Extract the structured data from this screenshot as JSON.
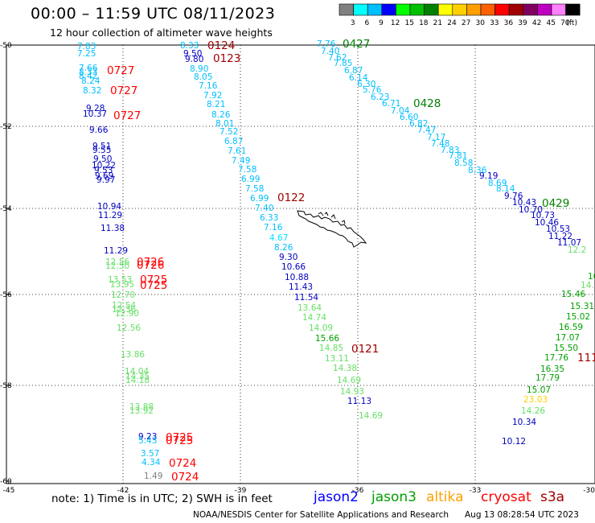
{
  "title": "00:00 – 11:59 UTC 08/11/2023",
  "subtitle": "12 hour collection of altimeter wave heights",
  "legend": {
    "unit": "(ft)",
    "bins": [
      {
        "label": "3",
        "color": "#808080"
      },
      {
        "label": "6",
        "color": "#00ffff"
      },
      {
        "label": "9",
        "color": "#00bfff"
      },
      {
        "label": "12",
        "color": "#0000ff"
      },
      {
        "label": "15",
        "color": "#00ff00"
      },
      {
        "label": "18",
        "color": "#00c000"
      },
      {
        "label": "21",
        "color": "#008000"
      },
      {
        "label": "24",
        "color": "#ffff00"
      },
      {
        "label": "27",
        "color": "#ffd000"
      },
      {
        "label": "30",
        "color": "#ffa000"
      },
      {
        "label": "33",
        "color": "#ff6000"
      },
      {
        "label": "36",
        "color": "#ff0000"
      },
      {
        "label": "39",
        "color": "#a00000"
      },
      {
        "label": "42",
        "color": "#800060"
      },
      {
        "label": "45",
        "color": "#c000c0"
      },
      {
        "label": "70",
        "color": "#ff80ff"
      },
      {
        "label": "",
        "color": "#000000"
      }
    ]
  },
  "axes": {
    "lat_ticks": [
      "-50",
      "-52",
      "-54",
      "-56",
      "-58",
      "-60"
    ],
    "lon_ticks": [
      "-45",
      "-42",
      "-39",
      "-36",
      "-33",
      "-30"
    ]
  },
  "tracks": [
    {
      "id": "t1",
      "points": [
        {
          "v": "7.83",
          "c": "#00bfff"
        },
        {
          "v": "7.25",
          "c": "#00bfff"
        },
        {
          "v": "7.66",
          "c": "#00bfff"
        },
        {
          "v": "8.33",
          "c": "#00bfff"
        },
        {
          "v": "8.42",
          "c": "#00bfff"
        },
        {
          "v": "8.24",
          "c": "#00bfff"
        },
        {
          "v": "8.32",
          "c": "#00bfff"
        },
        {
          "v": "9.28",
          "c": "#0000c0"
        },
        {
          "v": "10.37",
          "c": "#0000c0"
        },
        {
          "v": "9.66",
          "c": "#0000c0"
        },
        {
          "v": "9.51",
          "c": "#0000c0"
        },
        {
          "v": "9.55",
          "c": "#0000c0"
        },
        {
          "v": "9.50",
          "c": "#0000c0"
        },
        {
          "v": "10.22",
          "c": "#0000c0"
        },
        {
          "v": "9.53",
          "c": "#0000c0"
        },
        {
          "v": "9.69",
          "c": "#0000c0"
        },
        {
          "v": "9.97",
          "c": "#0000c0"
        },
        {
          "v": "10.94",
          "c": "#0000c0"
        },
        {
          "v": "11.29",
          "c": "#0000c0"
        },
        {
          "v": "11.38",
          "c": "#0000c0"
        },
        {
          "v": "11.29",
          "c": "#0000c0"
        },
        {
          "v": "12.56",
          "c": "#66e066"
        },
        {
          "v": "12.50",
          "c": "#66e066"
        },
        {
          "v": "13.53",
          "c": "#66e066"
        },
        {
          "v": "13.95",
          "c": "#66e066"
        },
        {
          "v": "12.70",
          "c": "#66e066"
        },
        {
          "v": "12.54",
          "c": "#66e066"
        },
        {
          "v": "12.36",
          "c": "#66e066"
        },
        {
          "v": "12.90",
          "c": "#66e066"
        },
        {
          "v": "12.56",
          "c": "#66e066"
        },
        {
          "v": "13.86",
          "c": "#66e066"
        },
        {
          "v": "14.04",
          "c": "#66e066"
        },
        {
          "v": "14.35",
          "c": "#66e066"
        },
        {
          "v": "14.18",
          "c": "#66e066"
        },
        {
          "v": "13.88",
          "c": "#66e066"
        },
        {
          "v": "13.92",
          "c": "#66e066"
        },
        {
          "v": "9.23",
          "c": "#0000c0"
        },
        {
          "v": "5.43",
          "c": "#00bfff"
        },
        {
          "v": "3.57",
          "c": "#00bfff"
        },
        {
          "v": "4.34",
          "c": "#00bfff"
        },
        {
          "v": "1.49",
          "c": "#808080"
        }
      ]
    },
    {
      "id": "t2",
      "points": [
        {
          "v": "8.33",
          "c": "#00bfff"
        },
        {
          "v": "9.50",
          "c": "#0000c0"
        },
        {
          "v": "9.80",
          "c": "#0000c0"
        },
        {
          "v": "8.90",
          "c": "#00bfff"
        },
        {
          "v": "8.05",
          "c": "#00bfff"
        },
        {
          "v": "7.16",
          "c": "#00bfff"
        },
        {
          "v": "7.92",
          "c": "#00bfff"
        },
        {
          "v": "8.21",
          "c": "#00bfff"
        },
        {
          "v": "8.26",
          "c": "#00bfff"
        },
        {
          "v": "8.01",
          "c": "#00bfff"
        },
        {
          "v": "7.52",
          "c": "#00bfff"
        },
        {
          "v": "6.87",
          "c": "#00bfff"
        },
        {
          "v": "7.61",
          "c": "#00bfff"
        },
        {
          "v": "7.49",
          "c": "#00bfff"
        },
        {
          "v": "7.58",
          "c": "#00bfff"
        },
        {
          "v": "6.99",
          "c": "#00bfff"
        },
        {
          "v": "7.58",
          "c": "#00bfff"
        },
        {
          "v": "6.99",
          "c": "#00bfff"
        },
        {
          "v": "7.40",
          "c": "#00bfff"
        },
        {
          "v": "6.33",
          "c": "#00bfff"
        },
        {
          "v": "7.16",
          "c": "#00bfff"
        },
        {
          "v": "4.67",
          "c": "#00dfff"
        },
        {
          "v": "8.26",
          "c": "#00bfff"
        },
        {
          "v": "9.30",
          "c": "#0000c0"
        },
        {
          "v": "10.66",
          "c": "#0000c0"
        },
        {
          "v": "10.88",
          "c": "#0000c0"
        },
        {
          "v": "11.43",
          "c": "#0000c0"
        },
        {
          "v": "11.54",
          "c": "#0000c0"
        },
        {
          "v": "13.64",
          "c": "#66e066"
        },
        {
          "v": "14.74",
          "c": "#66e066"
        },
        {
          "v": "14.09",
          "c": "#66e066"
        },
        {
          "v": "15.66",
          "c": "#00a000"
        },
        {
          "v": "14.85",
          "c": "#66e066"
        },
        {
          "v": "13.11",
          "c": "#66e066"
        },
        {
          "v": "14.38",
          "c": "#66e066"
        },
        {
          "v": "14.69",
          "c": "#66e066"
        },
        {
          "v": "14.93",
          "c": "#66e066"
        },
        {
          "v": "11.13",
          "c": "#0000c0"
        },
        {
          "v": "14.69",
          "c": "#66e066"
        }
      ]
    },
    {
      "id": "t3",
      "points": [
        {
          "v": "7.76",
          "c": "#00bfff"
        },
        {
          "v": "7.40",
          "c": "#00bfff"
        },
        {
          "v": "7.62",
          "c": "#00bfff"
        },
        {
          "v": "7.85",
          "c": "#00bfff"
        },
        {
          "v": "6.87",
          "c": "#00bfff"
        },
        {
          "v": "6.14",
          "c": "#00bfff"
        },
        {
          "v": "6.30",
          "c": "#00bfff"
        },
        {
          "v": "5.76",
          "c": "#00bfff"
        },
        {
          "v": "6.23",
          "c": "#00bfff"
        },
        {
          "v": "6.71",
          "c": "#00bfff"
        },
        {
          "v": "7.04",
          "c": "#00bfff"
        },
        {
          "v": "6.60",
          "c": "#00bfff"
        },
        {
          "v": "6.82",
          "c": "#00bfff"
        },
        {
          "v": "7.47",
          "c": "#00bfff"
        },
        {
          "v": "7.17",
          "c": "#00bfff"
        },
        {
          "v": "7.48",
          "c": "#00bfff"
        },
        {
          "v": "7.83",
          "c": "#00bfff"
        },
        {
          "v": "7.81",
          "c": "#00bfff"
        },
        {
          "v": "8.58",
          "c": "#00bfff"
        },
        {
          "v": "8.36",
          "c": "#00bfff"
        },
        {
          "v": "9.19",
          "c": "#0000c0"
        },
        {
          "v": "8.69",
          "c": "#00bfff"
        },
        {
          "v": "8.14",
          "c": "#00bfff"
        },
        {
          "v": "9.76",
          "c": "#0000c0"
        },
        {
          "v": "10.43",
          "c": "#0000c0"
        },
        {
          "v": "10.70",
          "c": "#0000c0"
        },
        {
          "v": "10.73",
          "c": "#0000c0"
        },
        {
          "v": "10.46",
          "c": "#0000c0"
        },
        {
          "v": "10.53",
          "c": "#0000c0"
        },
        {
          "v": "11.22",
          "c": "#0000c0"
        },
        {
          "v": "11.07",
          "c": "#0000c0"
        },
        {
          "v": "12.2",
          "c": "#66e066"
        }
      ]
    },
    {
      "id": "t4",
      "points": [
        {
          "v": "16",
          "c": "#00a000"
        },
        {
          "v": "14.",
          "c": "#66e066"
        },
        {
          "v": "15.46",
          "c": "#00a000"
        },
        {
          "v": "15.31",
          "c": "#00a000"
        },
        {
          "v": "15.02",
          "c": "#00a000"
        },
        {
          "v": "16.59",
          "c": "#00a000"
        },
        {
          "v": "17.07",
          "c": "#00a000"
        },
        {
          "v": "15.50",
          "c": "#00a000"
        },
        {
          "v": "17.76",
          "c": "#00a000"
        },
        {
          "v": "16.35",
          "c": "#00a000"
        },
        {
          "v": "17.79",
          "c": "#00a000"
        },
        {
          "v": "15.07",
          "c": "#00a000"
        },
        {
          "v": "23.03",
          "c": "#ffd000"
        },
        {
          "v": "14.26",
          "c": "#66e066"
        },
        {
          "v": "10.34",
          "c": "#0000c0"
        },
        {
          "v": "10.12",
          "c": "#0000c0"
        }
      ]
    }
  ],
  "time_labels": [
    {
      "v": "0124",
      "c": "#a00000"
    },
    {
      "v": "0123",
      "c": "#a00000"
    },
    {
      "v": "0727",
      "c": "#ff0000"
    },
    {
      "v": "0727",
      "c": "#ff0000"
    },
    {
      "v": "0727",
      "c": "#ff0000"
    },
    {
      "v": "0427",
      "c": "#008000"
    },
    {
      "v": "0428",
      "c": "#008000"
    },
    {
      "v": "0429",
      "c": "#008000"
    },
    {
      "v": "0122",
      "c": "#a00000"
    },
    {
      "v": "0726",
      "c": "#ff0000"
    },
    {
      "v": "0726",
      "c": "#ff0000"
    },
    {
      "v": "0725",
      "c": "#ff0000"
    },
    {
      "v": "0725",
      "c": "#ff0000"
    },
    {
      "v": "0121",
      "c": "#a00000"
    },
    {
      "v": "111",
      "c": "#a00000"
    },
    {
      "v": "0725",
      "c": "#ff0000"
    },
    {
      "v": "0725",
      "c": "#ff0000"
    },
    {
      "v": "0724",
      "c": "#ff0000"
    },
    {
      "v": "0724",
      "c": "#ff0000"
    }
  ],
  "footer": {
    "note": "note: 1) Time is in UTC; 2) SWH is in feet",
    "satellites": [
      {
        "name": "jason2",
        "color": "#0000ff"
      },
      {
        "name": "jason3",
        "color": "#00a000"
      },
      {
        "name": "altika",
        "color": "#ffa000"
      },
      {
        "name": "cryosat",
        "color": "#ff0000"
      },
      {
        "name": "s3a",
        "color": "#a00000"
      }
    ],
    "credit": "NOAA/NESDIS Center for Satellite Applications and Research",
    "timestamp": "Aug 13 08:28:54 UTC 2023"
  }
}
